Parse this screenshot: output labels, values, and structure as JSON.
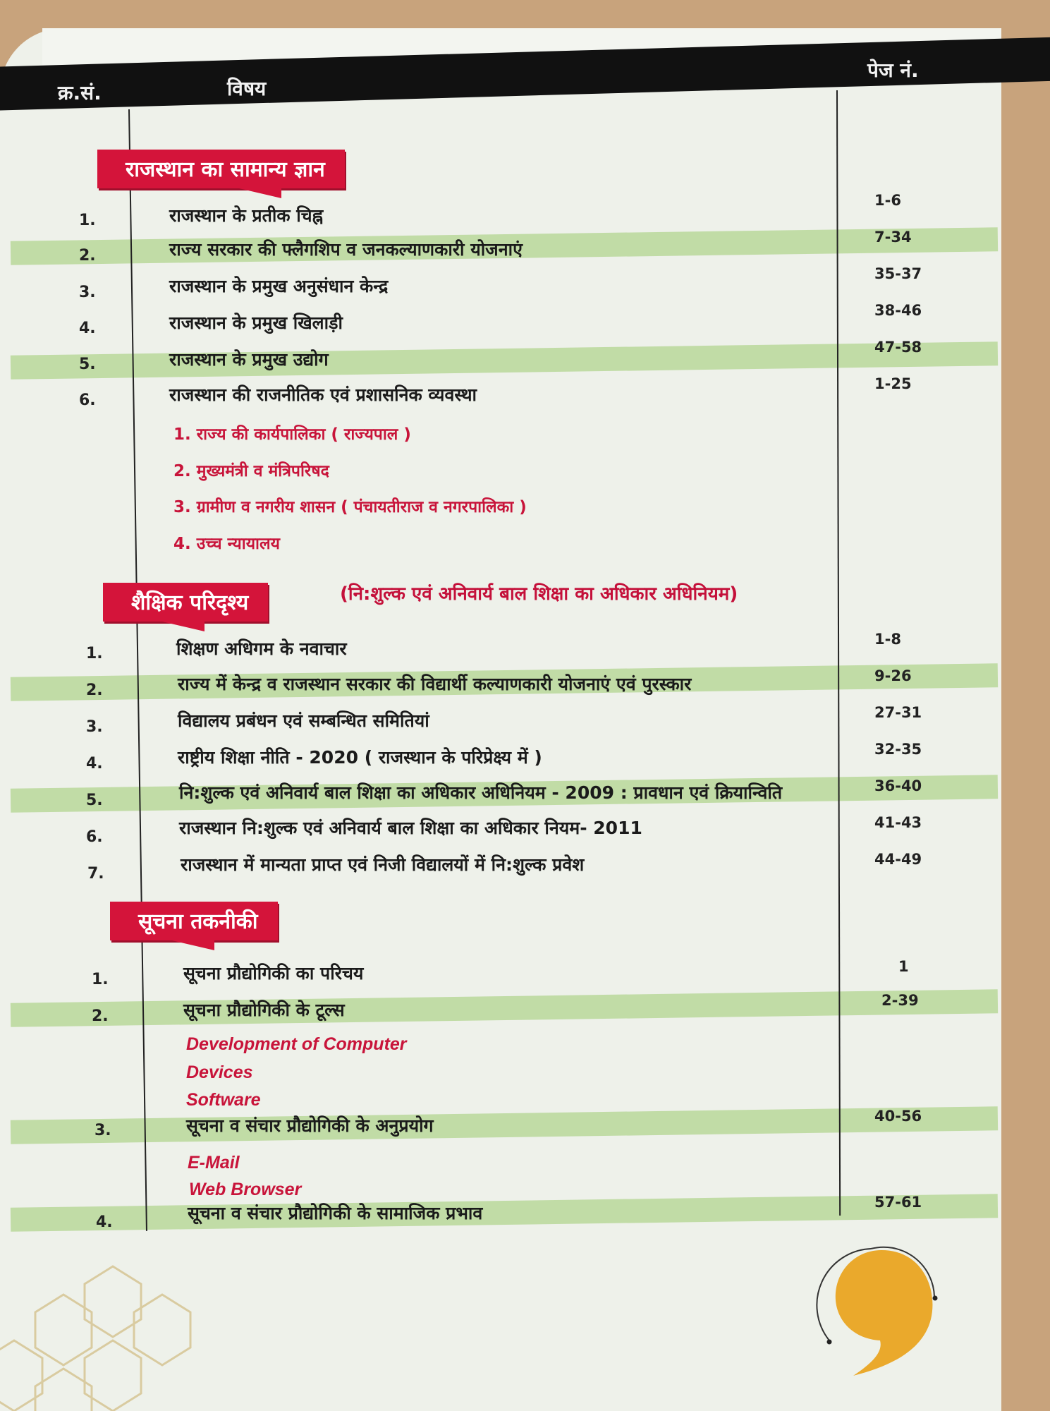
{
  "header": {
    "sno": "क्र.सं.",
    "subject": "विषय",
    "page_no": "पेज नं."
  },
  "sections": [
    {
      "title": "राजस्थान का सामान्य ज्ञान",
      "rows": [
        {
          "no": "1.",
          "title": "राजस्थान के प्रतीक चिह्न",
          "pages": "1-6"
        },
        {
          "no": "2.",
          "title": "राज्य सरकार की फ्लैगशिप व जनकल्याणकारी योजनाएं",
          "pages": "7-34"
        },
        {
          "no": "3.",
          "title": "राजस्थान के प्रमुख अनुसंधान केन्द्र",
          "pages": "35-37"
        },
        {
          "no": "4.",
          "title": "राजस्थान के प्रमुख खिलाड़ी",
          "pages": "38-46"
        },
        {
          "no": "5.",
          "title": "राजस्थान के प्रमुख उद्योग",
          "pages": "47-58"
        },
        {
          "no": "6.",
          "title": "राजस्थान की राजनीतिक एवं प्रशासनिक व्यवस्था",
          "pages": "1-25",
          "subitems": [
            "1. राज्य की कार्यपालिका ( राज्यपाल )",
            "2. मुख्यमंत्री व मंत्रिपरिषद",
            "3. ग्रामीण व नगरीय शासन ( पंचायतीराज व नगरपालिका )",
            "4. उच्च न्यायालय"
          ]
        }
      ]
    },
    {
      "title": "शैक्षिक परिदृश्य",
      "subtitle": "(नि:शुल्क एवं अनिवार्य बाल शिक्षा का अधिकार अधिनियम)",
      "rows": [
        {
          "no": "1.",
          "title": "शिक्षण अधिगम के नवाचार",
          "pages": "1-8"
        },
        {
          "no": "2.",
          "title": "राज्य में केन्द्र व राजस्थान सरकार की विद्यार्थी कल्याणकारी योजनाएं एवं पुरस्कार",
          "pages": "9-26"
        },
        {
          "no": "3.",
          "title": "विद्यालय प्रबंधन एवं सम्बन्धित समितियां",
          "pages": "27-31"
        },
        {
          "no": "4.",
          "title": "राष्ट्रीय शिक्षा नीति - 2020 ( राजस्थान के परिप्रेक्ष्य में )",
          "pages": "32-35"
        },
        {
          "no": "5.",
          "title": "नि:शुल्क एवं अनिवार्य बाल शिक्षा का अधिकार अधिनियम - 2009 : प्रावधान एवं क्रियान्विति",
          "pages": "36-40"
        },
        {
          "no": "6.",
          "title": "राजस्थान नि:शुल्क एवं अनिवार्य बाल शिक्षा का अधिकार नियम- 2011",
          "pages": "41-43"
        },
        {
          "no": "7.",
          "title": "राजस्थान में मान्यता प्राप्त एवं निजी विद्यालयों में नि:शुल्क प्रवेश",
          "pages": "44-49"
        }
      ]
    },
    {
      "title": "सूचना तकनीकी",
      "rows": [
        {
          "no": "1.",
          "title": "सूचना प्रौद्योगिकी का परिचय",
          "pages": "1"
        },
        {
          "no": "2.",
          "title": "सूचना प्रौद्योगिकी के टूल्स",
          "pages": "2-39",
          "subitems": [
            "Development of Computer",
            "Devices",
            "Software"
          ]
        },
        {
          "no": "3.",
          "title": "सूचना व संचार प्रौद्योगिकी के अनुप्रयोग",
          "pages": "40-56",
          "subitems": [
            "E-Mail",
            "Web Browser"
          ]
        },
        {
          "no": "4.",
          "title": "सूचना व संचार प्रौद्योगिकी के सामाजिक प्रभाव",
          "pages": "57-61"
        }
      ]
    }
  ],
  "colors": {
    "banner": "#d4143a",
    "highlight_band": "#b9d89a",
    "subitem_text": "#c8143a",
    "header_band": "#111111",
    "accent_circle": "#eaa92c"
  }
}
